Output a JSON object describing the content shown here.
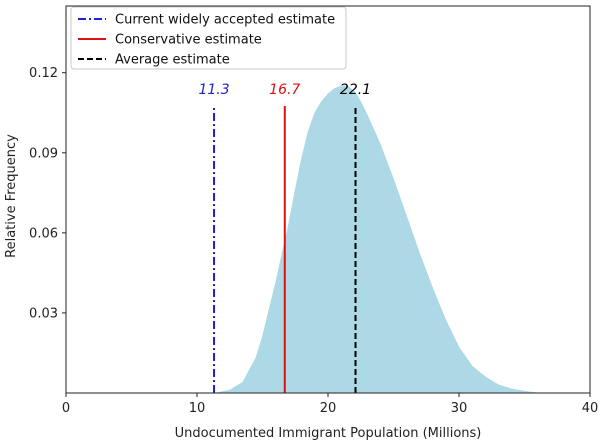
{
  "chart_data": {
    "type": "area",
    "title": "",
    "xlabel": "Undocumented Immigrant Population (Millions)",
    "ylabel": "Relative Frequency",
    "xlim": [
      0,
      40
    ],
    "ylim": [
      0,
      0.145
    ],
    "xticks": [
      0,
      10,
      20,
      30,
      40
    ],
    "xtick_labels": [
      "0",
      "10",
      "20",
      "30",
      "40"
    ],
    "yticks": [
      0.03,
      0.06,
      0.09,
      0.12
    ],
    "ytick_labels": [
      "0.03",
      "0.06",
      "0.09",
      "0.12"
    ],
    "grid": false,
    "legend_position": "top-left",
    "distribution": {
      "color": "#add8e6",
      "x": [
        11.5,
        12.5,
        13.5,
        14.5,
        15,
        15.5,
        16,
        16.5,
        17,
        17.5,
        18,
        18.5,
        19,
        19.5,
        20,
        20.5,
        21,
        21.5,
        22,
        22.5,
        23,
        24,
        25,
        26,
        27,
        28,
        29,
        30,
        31,
        32,
        33,
        34,
        35,
        36
      ],
      "y": [
        0,
        0.001,
        0.004,
        0.013,
        0.021,
        0.031,
        0.041,
        0.052,
        0.063,
        0.076,
        0.088,
        0.098,
        0.105,
        0.109,
        0.112,
        0.114,
        0.115,
        0.115,
        0.113,
        0.109,
        0.104,
        0.093,
        0.08,
        0.066,
        0.052,
        0.039,
        0.027,
        0.017,
        0.01,
        0.006,
        0.003,
        0.0015,
        0.0006,
        0
      ]
    },
    "vlines": [
      {
        "x": 11.3,
        "label": "11.3",
        "legend": "Current widely accepted estimate",
        "color": "#1f1fd6",
        "style": "dashdot"
      },
      {
        "x": 16.7,
        "label": "16.7",
        "legend": "Conservative estimate",
        "color": "#e01010",
        "style": "solid"
      },
      {
        "x": 22.1,
        "label": "22.1",
        "legend": "Average estimate",
        "color": "#000000",
        "style": "dashed"
      }
    ]
  }
}
